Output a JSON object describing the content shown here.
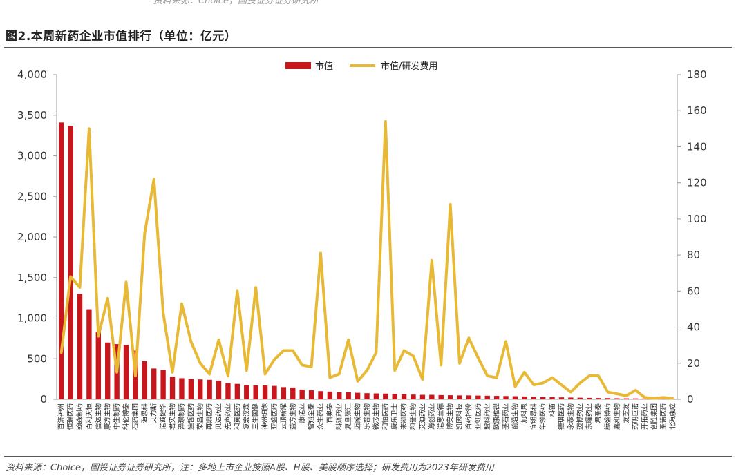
{
  "header": {
    "top_cut_text": "资料来源：Choice，国投证券证券研究所",
    "title": "图2.本周新药企业市值排行（单位：亿元）"
  },
  "footer": {
    "source_note": "资料来源：Choice，国投证券证券研究所，注：多地上市企业按照A股、H股、美股顺序选择；研发费用为2023年研发费用"
  },
  "colors": {
    "bar": "#C8161D",
    "line": "#E8B935",
    "axis": "#999999"
  },
  "chart_data": {
    "type": "bar",
    "title": "",
    "xlabel": "",
    "ylabel": "",
    "ylim": [
      0,
      4000
    ],
    "y2lim": [
      0,
      180
    ],
    "yticks": [
      "0",
      "500",
      "1,000",
      "1,500",
      "2,000",
      "2,500",
      "3,000",
      "3,500",
      "4,000"
    ],
    "y2ticks": [
      "0",
      "20",
      "40",
      "60",
      "80",
      "100",
      "120",
      "140",
      "160",
      "180"
    ],
    "grid": false,
    "legend_position": "top-center",
    "categories": [
      "百济神州",
      "恒瑞医药",
      "翰森制药",
      "百利天恒",
      "信达生物",
      "康方生物",
      "中生制药",
      "科伦博泰",
      "石药集团",
      "海思科",
      "艾力斯",
      "诺诚健华",
      "君实生物",
      "泽璟制药",
      "迪哲医药",
      "荣昌生物",
      "再鼎医药",
      "贝达药业",
      "先声药业",
      "和黄医药",
      "复宏汉霖",
      "三生国健",
      "神州细胞",
      "亚盛医药",
      "云顶新耀",
      "益方生物",
      "康诺亚",
      "智翔金泰",
      "众生药业",
      "百奥泰",
      "科济药业",
      "复旦张江",
      "迈威生物",
      "乐普生物",
      "微芯生物",
      "和铂医药",
      "康乐卫士",
      "来凯医药",
      "和誉生物",
      "艾迪药业",
      "海创药业",
      "诺思兰德",
      "博安生物",
      "凯因科技",
      "首药控股",
      "亚虹医药",
      "盟科药业",
      "欧康维视",
      "基石药业",
      "前沿生物",
      "加科思",
      "宜明昂科",
      "华领医药",
      "科笛",
      "德琪医药",
      "永泰生物",
      "迈博药业",
      "东曜药业",
      "君圣泰",
      "腾盛博药",
      "嘉和生物",
      "友芝友",
      "药明巨诺",
      "开拓药业",
      "创胜集团",
      "圣诺医药",
      "北海康成"
    ],
    "series": [
      {
        "name": "市值",
        "axis": "left",
        "type": "bar",
        "values": [
          3410,
          3370,
          1300,
          1110,
          830,
          700,
          680,
          670,
          600,
          470,
          380,
          360,
          280,
          260,
          250,
          245,
          240,
          230,
          200,
          190,
          175,
          170,
          170,
          165,
          150,
          145,
          120,
          110,
          100,
          95,
          85,
          85,
          80,
          75,
          72,
          70,
          65,
          62,
          58,
          55,
          55,
          52,
          50,
          48,
          48,
          46,
          44,
          42,
          40,
          38,
          35,
          30,
          28,
          26,
          24,
          22,
          20,
          18,
          16,
          15,
          13,
          12,
          11,
          10,
          8,
          6,
          5
        ]
      },
      {
        "name": "市值/研发费用",
        "axis": "right",
        "type": "line",
        "values": [
          26,
          68,
          62,
          150,
          35,
          56,
          15,
          65,
          13,
          92,
          122,
          48,
          15,
          53,
          32,
          20,
          14,
          33,
          13,
          60,
          16,
          62,
          14,
          22,
          27,
          27,
          19,
          18,
          81,
          12,
          14,
          33,
          10,
          16,
          26,
          154,
          16,
          27,
          24,
          11,
          77,
          19,
          108,
          20,
          34,
          23,
          13,
          12,
          32,
          7,
          15,
          8,
          9,
          12,
          8,
          4,
          9,
          13,
          13,
          4,
          3,
          2,
          5,
          1,
          0.5,
          1,
          0.5
        ]
      }
    ]
  }
}
